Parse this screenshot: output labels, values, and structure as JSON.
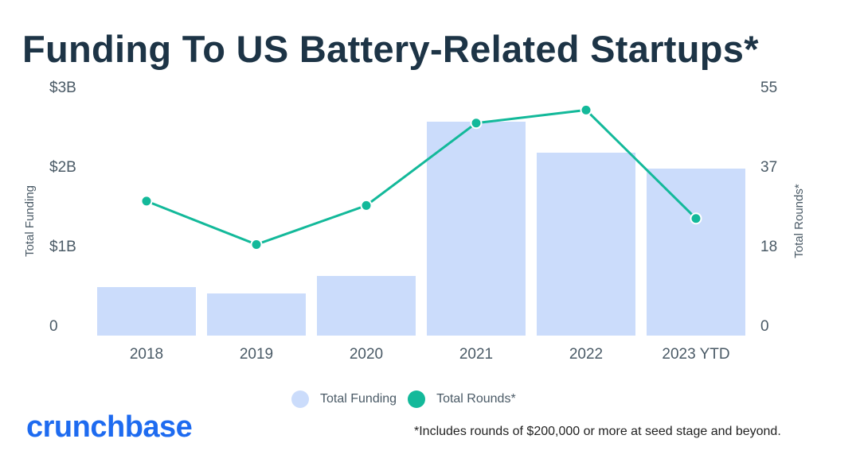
{
  "title": "Funding To US Battery-Related Startups*",
  "chart_data": {
    "type": "bar+line",
    "title": "Funding To US Battery-Related Startups*",
    "categories": [
      "2018",
      "2019",
      "2020",
      "2021",
      "2022",
      "2023 YTD"
    ],
    "series": [
      {
        "name": "Total Funding",
        "type": "bar",
        "axis": "left",
        "unit": "USD billions",
        "values": [
          0.61,
          0.53,
          0.75,
          2.69,
          2.3,
          2.1
        ],
        "color": "#cbdcfb"
      },
      {
        "name": "Total Rounds*",
        "type": "line",
        "axis": "right",
        "values": [
          31,
          21,
          30,
          49,
          52,
          27
        ],
        "color": "#13b99a"
      }
    ],
    "ylabel": "Total Funding",
    "ylim": [
      0,
      3
    ],
    "yticks": [
      "0",
      "$1B",
      "$2B",
      "$3B"
    ],
    "y2label": "Total Rounds*",
    "y2lim": [
      0,
      55
    ],
    "y2ticks": [
      "0",
      "18",
      "37",
      "55"
    ],
    "legend": "bottom-center",
    "grid": false
  },
  "legend": {
    "funding": "Total Funding",
    "rounds": "Total Rounds*"
  },
  "footer": {
    "logo": "crunchbase",
    "note": "*Includes rounds of $200,000 or more at seed stage and beyond."
  }
}
